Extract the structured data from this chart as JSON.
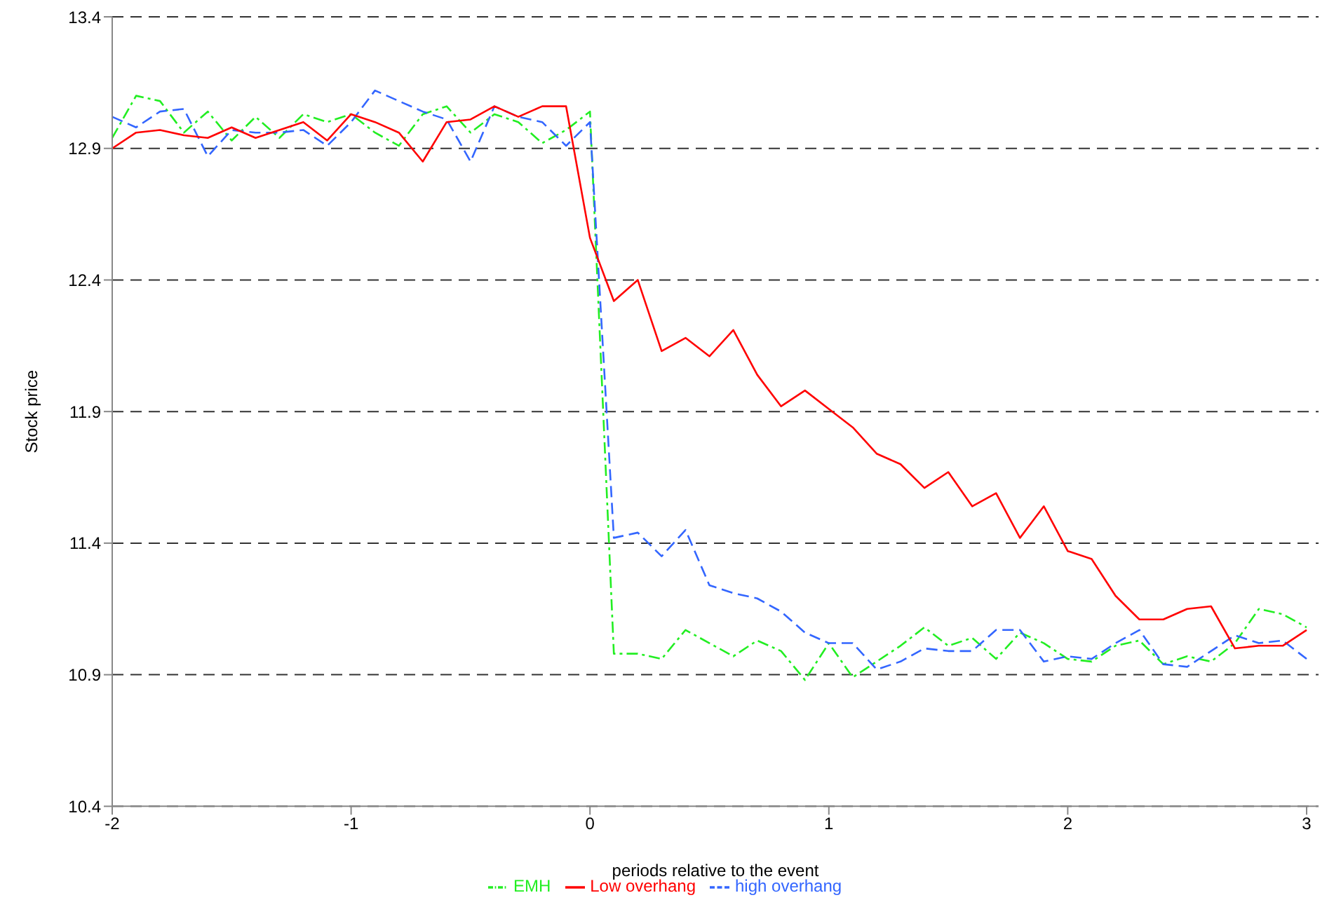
{
  "chart_data": {
    "type": "line",
    "xlabel": "periods relative to the event",
    "ylabel": "Stock price",
    "x": [
      -2,
      -1.9,
      -1.8,
      -1.7,
      -1.6,
      -1.5,
      -1.4,
      -1.3,
      -1.2,
      -1.1,
      -1,
      -0.9,
      -0.8,
      -0.7,
      -0.6,
      -0.5,
      -0.4,
      -0.3,
      -0.2,
      -0.1,
      0,
      0.1,
      0.2,
      0.3,
      0.4,
      0.5,
      0.6,
      0.7,
      0.8,
      0.9,
      1,
      1.1,
      1.2,
      1.3,
      1.4,
      1.5,
      1.6,
      1.7,
      1.8,
      1.9,
      2,
      2.1,
      2.2,
      2.3,
      2.4,
      2.5,
      2.6,
      2.7,
      2.8,
      2.9,
      3
    ],
    "series": [
      {
        "name": "EMH",
        "color": "#22ee22",
        "line_style": "dashdot",
        "values": [
          12.94,
          13.1,
          13.08,
          12.96,
          13.04,
          12.93,
          13.02,
          12.94,
          13.03,
          13.0,
          13.03,
          12.96,
          12.91,
          13.03,
          13.06,
          12.96,
          13.03,
          13.0,
          12.92,
          12.97,
          13.04,
          10.98,
          10.98,
          10.96,
          11.07,
          11.02,
          10.97,
          11.03,
          10.99,
          10.88,
          11.02,
          10.89,
          10.95,
          11.01,
          11.08,
          11.01,
          11.04,
          10.96,
          11.06,
          11.02,
          10.96,
          10.95,
          11.01,
          11.03,
          10.94,
          10.97,
          10.95,
          11.02,
          11.15,
          11.13,
          11.08
        ]
      },
      {
        "name": "high overhang",
        "color": "#3366ff",
        "line_style": "dashed",
        "values": [
          13.02,
          12.98,
          13.04,
          13.05,
          12.87,
          12.97,
          12.96,
          12.96,
          12.97,
          12.91,
          13.0,
          13.12,
          13.08,
          13.04,
          13.01,
          12.85,
          13.06,
          13.02,
          13.0,
          12.91,
          13.0,
          11.42,
          11.44,
          11.35,
          11.45,
          11.24,
          11.21,
          11.19,
          11.14,
          11.06,
          11.02,
          11.02,
          10.92,
          10.95,
          11.0,
          10.99,
          10.99,
          11.07,
          11.07,
          10.95,
          10.97,
          10.96,
          11.02,
          11.07,
          10.94,
          10.93,
          10.99,
          11.05,
          11.02,
          11.03,
          10.96
        ]
      },
      {
        "name": "Low overhang",
        "color": "#ff0000",
        "line_style": "solid",
        "values": [
          12.9,
          12.96,
          12.97,
          12.95,
          12.94,
          12.98,
          12.94,
          12.97,
          13.0,
          12.93,
          13.03,
          13.0,
          12.96,
          12.85,
          13.0,
          13.01,
          13.06,
          13.02,
          13.06,
          13.06,
          12.56,
          12.32,
          12.4,
          12.13,
          12.18,
          12.11,
          12.21,
          12.04,
          11.92,
          11.98,
          11.91,
          11.84,
          11.74,
          11.7,
          11.61,
          11.67,
          11.54,
          11.59,
          11.42,
          11.54,
          11.37,
          11.34,
          11.2,
          11.11,
          11.11,
          11.15,
          11.16,
          11.0,
          11.01,
          11.01,
          11.07
        ]
      }
    ],
    "xlim": [
      -2,
      3.05
    ],
    "xticks": [
      -2,
      -1,
      0,
      1,
      2,
      3
    ],
    "ylim": [
      10.4,
      13.4
    ],
    "yticks": [
      10.4,
      10.9,
      11.4,
      11.9,
      12.4,
      12.9,
      13.4
    ],
    "grid": "y",
    "legend": "bottom",
    "marker": "none"
  }
}
